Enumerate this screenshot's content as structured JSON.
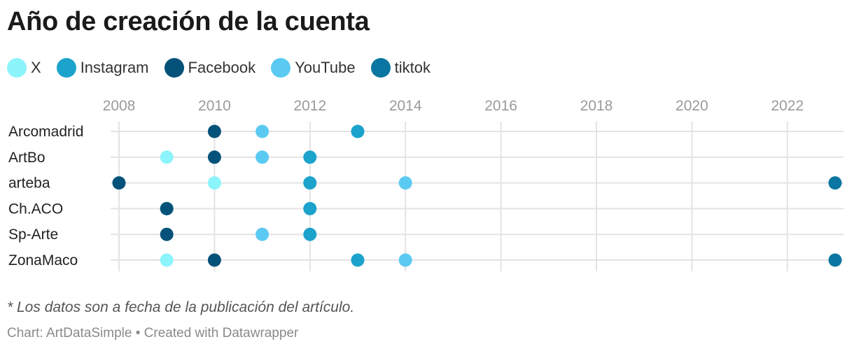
{
  "chart_data": {
    "type": "scatter",
    "title": "Año de creación de la cuenta",
    "x_ticks": [
      2008,
      2010,
      2012,
      2014,
      2016,
      2018,
      2020,
      2022
    ],
    "xlim": [
      2008,
      2023
    ],
    "legend": [
      {
        "name": "X",
        "color": "#8cf4fb"
      },
      {
        "name": "Instagram",
        "color": "#1ba3cc"
      },
      {
        "name": "Facebook",
        "color": "#04527a"
      },
      {
        "name": "YouTube",
        "color": "#5bcaf2"
      },
      {
        "name": "tiktok",
        "color": "#0a76a1"
      }
    ],
    "categories": [
      "Arcomadrid",
      "ArtBo",
      "arteba",
      "Ch.ACO",
      "Sp-Arte",
      "ZonaMaco"
    ],
    "series": [
      {
        "name": "X",
        "values": [
          null,
          2009,
          2010,
          2009,
          null,
          2009
        ]
      },
      {
        "name": "Instagram",
        "values": [
          2013,
          2012,
          2012,
          2012,
          2012,
          2013
        ]
      },
      {
        "name": "YouTube",
        "values": [
          2011,
          2011,
          2014,
          2009,
          2011,
          2014
        ]
      },
      {
        "name": "Facebook",
        "values": [
          2010,
          2010,
          2008,
          2009,
          2009,
          2010
        ]
      },
      {
        "name": "tiktok",
        "values": [
          null,
          null,
          2023,
          null,
          null,
          2023
        ]
      }
    ]
  },
  "note": "* Los datos son a fecha de la publicación del artículo.",
  "footer": "Chart: ArtDataSimple • Created with Datawrapper"
}
